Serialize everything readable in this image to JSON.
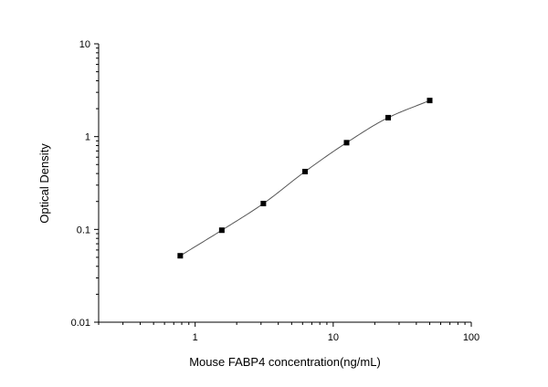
{
  "chart_data": {
    "type": "scatter",
    "title": "",
    "xlabel": "Mouse FABP4 concentration(ng/mL)",
    "ylabel": "Optical Density",
    "xscale": "log",
    "yscale": "log",
    "xlim": [
      0.2,
      100
    ],
    "ylim": [
      0.01,
      10
    ],
    "x_ticks": [
      {
        "value": 1,
        "label": "1"
      },
      {
        "value": 10,
        "label": "10"
      },
      {
        "value": 100,
        "label": "100"
      }
    ],
    "y_ticks": [
      {
        "value": 0.01,
        "label": "0.01"
      },
      {
        "value": 0.1,
        "label": "0.1"
      },
      {
        "value": 1,
        "label": "1"
      },
      {
        "value": 10,
        "label": "10"
      }
    ],
    "grid": false,
    "legend": "none",
    "series": [
      {
        "marker": "square",
        "fit_curve": true,
        "points": [
          {
            "x": 0.78,
            "y": 0.052
          },
          {
            "x": 1.56,
            "y": 0.098
          },
          {
            "x": 3.12,
            "y": 0.19
          },
          {
            "x": 6.25,
            "y": 0.42
          },
          {
            "x": 12.5,
            "y": 0.86
          },
          {
            "x": 25,
            "y": 1.6
          },
          {
            "x": 50,
            "y": 2.45
          }
        ]
      }
    ],
    "colors": {
      "marker": "#000000",
      "curve": "#555555",
      "axis": "#000000"
    }
  }
}
